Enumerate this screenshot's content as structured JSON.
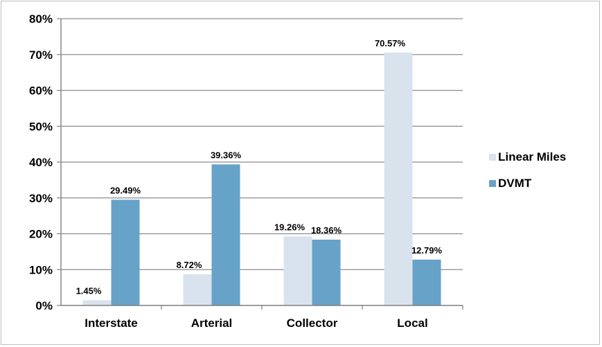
{
  "chart_data": {
    "type": "bar",
    "title": "",
    "xlabel": "",
    "ylabel": "",
    "categories": [
      "Interstate",
      "Arterial",
      "Collector",
      "Local"
    ],
    "series": [
      {
        "name": "Linear Miles",
        "values": [
          1.45,
          8.72,
          19.26,
          70.57
        ],
        "labels": [
          "1.45%",
          "8.72%",
          "19.26%",
          "70.57%"
        ],
        "color": "#d9e3ee"
      },
      {
        "name": "DVMT",
        "values": [
          29.49,
          39.36,
          18.36,
          12.79
        ],
        "labels": [
          "29.49%",
          "39.36%",
          "18.36%",
          "12.79%"
        ],
        "color": "#67a2c9"
      }
    ],
    "ylim": [
      0,
      80
    ],
    "yticks": [
      0,
      10,
      20,
      30,
      40,
      50,
      60,
      70,
      80
    ],
    "ytick_labels": [
      "0%",
      "10%",
      "20%",
      "30%",
      "40%",
      "50%",
      "60%",
      "70%",
      "80%"
    ],
    "grid": true,
    "legend_position": "right"
  }
}
